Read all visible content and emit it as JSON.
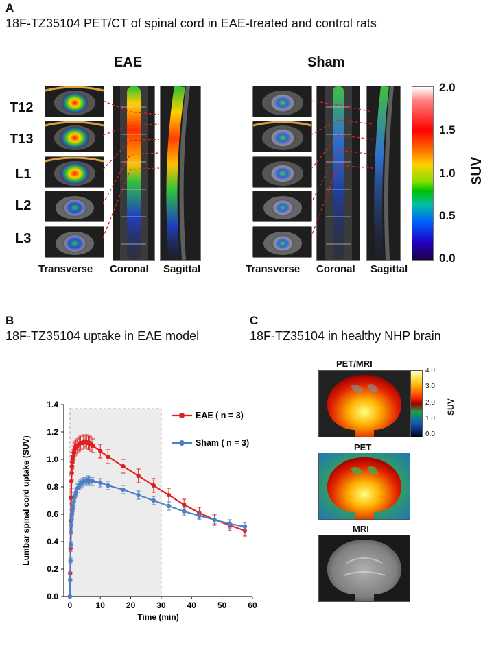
{
  "panelA": {
    "letter": "A",
    "title": "18F-TZ35104 PET/CT of spinal cord in EAE-treated and control rats",
    "eae_title": "EAE",
    "sham_title": "Sham",
    "vertebrae": [
      "T12",
      "T13",
      "L1",
      "L2",
      "L3"
    ],
    "views": [
      "Transverse",
      "Coronal",
      "Sagittal"
    ],
    "colorbar": {
      "label": "SUV",
      "ticks": [
        "2.0",
        "1.5",
        "1.0",
        "0.5",
        "0.0"
      ]
    }
  },
  "panelB": {
    "letter": "B",
    "title": "18F-TZ35104 uptake in EAE model"
  },
  "panelC": {
    "letter": "C",
    "title": "18F-TZ35104 in healthy NHP brain",
    "labels": [
      "PET/MRI",
      "PET",
      "MRI"
    ],
    "colorbar": {
      "label": "SUV",
      "ticks": [
        "4.0",
        "3.0",
        "2.0",
        "1.0",
        "0.0"
      ]
    }
  },
  "chart_data": {
    "type": "line",
    "xlabel": "Time (min)",
    "ylabel": "Lumbar spinal cord uptake (SUV)",
    "xlim": [
      -2,
      60
    ],
    "ylim": [
      0,
      1.4
    ],
    "xticks": [
      "0",
      "10",
      "20",
      "30",
      "40",
      "50",
      "60"
    ],
    "yticks": [
      "0.0",
      "0.2",
      "0.4",
      "0.6",
      "0.8",
      "1.0",
      "1.2",
      "1.4"
    ],
    "shaded_region": [
      0,
      30
    ],
    "grid": false,
    "legend_placement": "top-right",
    "series": [
      {
        "name": "EAE ( n = 3)",
        "color": "#e02020",
        "x": [
          0.0,
          0.1,
          0.2,
          0.3,
          0.4,
          0.5,
          0.6,
          0.7,
          0.8,
          0.9,
          1.0,
          1.25,
          1.5,
          1.75,
          2.0,
          2.5,
          3.0,
          3.5,
          4.0,
          4.5,
          5.0,
          5.5,
          6.0,
          6.5,
          7.0,
          7.5,
          10,
          12.5,
          17.5,
          22.5,
          27.5,
          32.5,
          37.5,
          42.5,
          47.5,
          52.5,
          57.5
        ],
        "y": [
          0.0,
          0.17,
          0.35,
          0.55,
          0.72,
          0.84,
          0.9,
          0.95,
          0.98,
          1.0,
          1.02,
          1.05,
          1.07,
          1.08,
          1.09,
          1.1,
          1.11,
          1.12,
          1.12,
          1.13,
          1.13,
          1.13,
          1.12,
          1.12,
          1.11,
          1.1,
          1.06,
          1.02,
          0.95,
          0.88,
          0.81,
          0.74,
          0.67,
          0.61,
          0.56,
          0.52,
          0.48
        ],
        "err": [
          0,
          0.01,
          0.02,
          0.03,
          0.04,
          0.05,
          0.05,
          0.05,
          0.05,
          0.05,
          0.05,
          0.05,
          0.05,
          0.05,
          0.05,
          0.05,
          0.05,
          0.05,
          0.05,
          0.05,
          0.05,
          0.05,
          0.05,
          0.05,
          0.05,
          0.05,
          0.05,
          0.05,
          0.05,
          0.05,
          0.05,
          0.05,
          0.04,
          0.04,
          0.04,
          0.04,
          0.04
        ]
      },
      {
        "name": "Sham ( n = 3)",
        "color": "#4f7fc4",
        "x": [
          0.0,
          0.1,
          0.2,
          0.3,
          0.4,
          0.5,
          0.6,
          0.7,
          0.8,
          0.9,
          1.0,
          1.25,
          1.5,
          1.75,
          2.0,
          2.5,
          3.0,
          3.5,
          4.0,
          4.5,
          5.0,
          5.5,
          6.0,
          6.5,
          7.0,
          7.5,
          10,
          12.5,
          17.5,
          22.5,
          27.5,
          32.5,
          37.5,
          42.5,
          47.5,
          52.5,
          57.5
        ],
        "y": [
          0.0,
          0.12,
          0.26,
          0.38,
          0.47,
          0.52,
          0.56,
          0.6,
          0.62,
          0.64,
          0.66,
          0.69,
          0.72,
          0.74,
          0.76,
          0.79,
          0.81,
          0.82,
          0.83,
          0.84,
          0.84,
          0.84,
          0.85,
          0.84,
          0.84,
          0.84,
          0.83,
          0.81,
          0.78,
          0.74,
          0.7,
          0.66,
          0.62,
          0.59,
          0.56,
          0.53,
          0.51
        ],
        "err": [
          0,
          0.01,
          0.02,
          0.02,
          0.02,
          0.02,
          0.02,
          0.02,
          0.02,
          0.02,
          0.02,
          0.02,
          0.02,
          0.02,
          0.03,
          0.03,
          0.03,
          0.03,
          0.03,
          0.03,
          0.03,
          0.03,
          0.03,
          0.03,
          0.03,
          0.03,
          0.03,
          0.03,
          0.03,
          0.03,
          0.03,
          0.03,
          0.03,
          0.03,
          0.03,
          0.03,
          0.03
        ]
      }
    ]
  }
}
